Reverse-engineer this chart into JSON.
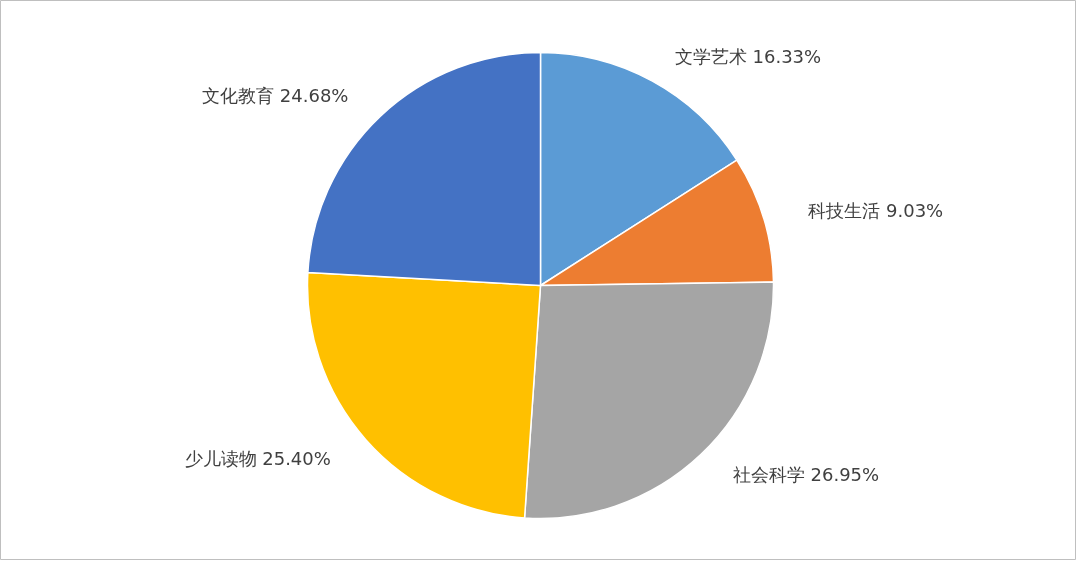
{
  "chart_data": {
    "type": "pie",
    "categories": [
      "文学艺术",
      "科技生活",
      "社会科学",
      "少儿读物",
      "文化教育"
    ],
    "values": [
      16.33,
      9.03,
      26.95,
      25.4,
      24.68
    ],
    "colors": [
      "#5b9bd5",
      "#ed7d31",
      "#a5a5a5",
      "#ffc000",
      "#4472c4"
    ],
    "value_labels": [
      "16.33%",
      "9.03%",
      "26.95%",
      "25.40%",
      "24.68%"
    ]
  }
}
